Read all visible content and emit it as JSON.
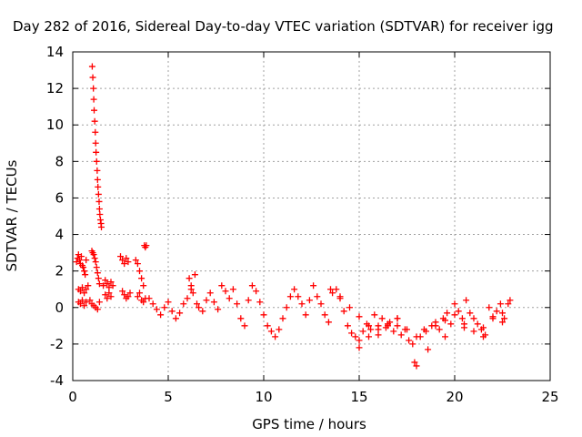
{
  "chart_data": {
    "type": "scatter",
    "title": "Day 282 of 2016, Sidereal Day-to-day VTEC variation (SDTVAR) for receiver igg",
    "xlabel": "GPS time / hours",
    "ylabel": "SDTVAR / TECUs",
    "xlim": [
      0,
      25
    ],
    "ylim": [
      -4,
      14
    ],
    "xticks": [
      "0",
      "5",
      "10",
      "15",
      "20",
      "25"
    ],
    "yticks": [
      "-4",
      "-2",
      "0",
      "2",
      "4",
      "6",
      "8",
      "10",
      "12",
      "14"
    ],
    "grid": true,
    "marker": "+",
    "color": "#ff0000",
    "series": [
      {
        "name": "SDTVAR",
        "x": [
          0.2,
          0.25,
          0.3,
          0.35,
          0.4,
          0.45,
          0.5,
          0.55,
          0.6,
          0.65,
          0.7,
          0.3,
          0.4,
          0.5,
          0.6,
          0.7,
          0.8,
          0.3,
          0.4,
          0.5,
          0.6,
          0.7,
          1.02,
          1.05,
          1.08,
          1.1,
          1.12,
          1.15,
          1.18,
          1.2,
          1.22,
          1.25,
          1.28,
          1.3,
          1.32,
          1.35,
          1.38,
          1.4,
          1.42,
          1.45,
          1.48,
          1.5,
          1.0,
          1.05,
          1.1,
          1.15,
          1.2,
          1.25,
          1.3,
          1.35,
          1.4,
          0.9,
          1.0,
          1.1,
          1.2,
          1.3,
          1.4,
          1.6,
          1.7,
          1.8,
          1.9,
          2.0,
          2.1,
          1.7,
          1.8,
          1.9,
          2.0,
          2.5,
          2.6,
          2.7,
          2.8,
          2.9,
          2.6,
          2.7,
          2.8,
          2.9,
          3.0,
          3.3,
          3.4,
          3.5,
          3.6,
          3.7,
          3.4,
          3.5,
          3.6,
          3.7,
          3.8,
          3.75,
          3.8,
          3.85,
          4.0,
          4.2,
          4.4,
          4.6,
          4.8,
          5.0,
          5.2,
          5.4,
          5.6,
          5.8,
          6.0,
          6.2,
          6.4,
          6.1,
          6.2,
          6.3,
          6.5,
          6.6,
          6.8,
          7.0,
          7.2,
          7.4,
          7.6,
          7.8,
          8.0,
          8.2,
          8.4,
          8.6,
          8.8,
          9.0,
          9.2,
          9.4,
          9.6,
          9.8,
          10.0,
          10.2,
          10.4,
          10.6,
          10.8,
          11.0,
          11.2,
          11.4,
          11.6,
          11.8,
          12.0,
          12.2,
          12.4,
          12.6,
          12.8,
          13.0,
          13.2,
          13.4,
          13.6,
          13.8,
          14.0,
          14.2,
          14.4,
          14.6,
          14.8,
          15.0,
          15.2,
          15.4,
          15.6,
          15.8,
          16.0,
          16.2,
          16.4,
          16.6,
          16.8,
          17.0,
          17.2,
          17.4,
          17.6,
          17.8,
          17.9,
          18.0,
          18.2,
          18.4,
          18.6,
          18.8,
          19.0,
          19.2,
          19.4,
          19.6,
          19.8,
          20.0,
          20.2,
          20.4,
          20.6,
          20.8,
          21.0,
          21.2,
          21.4,
          21.6,
          21.8,
          22.0,
          22.2,
          22.4,
          22.6,
          22.8,
          22.9,
          15.0,
          15.5,
          16.0,
          16.5,
          17.0,
          19.5,
          20.5,
          21.5,
          22.5,
          13.5,
          14.0,
          14.5,
          15.0,
          15.5,
          16.0,
          16.5,
          17.0,
          17.5,
          18.0,
          18.5,
          19.0,
          19.5,
          20.0,
          20.5,
          21.0,
          21.5,
          22.0,
          22.5
        ],
        "y": [
          2.5,
          2.7,
          2.9,
          2.6,
          2.4,
          2.8,
          2.3,
          2.2,
          2.0,
          1.8,
          2.6,
          1.0,
          0.9,
          1.1,
          0.8,
          1.0,
          1.2,
          0.3,
          0.2,
          0.4,
          0.1,
          0.3,
          13.2,
          12.6,
          12.0,
          11.4,
          10.8,
          10.2,
          9.6,
          9.0,
          8.5,
          8.0,
          7.5,
          7.0,
          6.6,
          6.2,
          5.8,
          5.4,
          5.1,
          4.8,
          4.6,
          4.4,
          3.1,
          3.0,
          2.9,
          2.7,
          2.5,
          2.2,
          1.9,
          1.6,
          1.3,
          0.4,
          0.2,
          0.1,
          0.0,
          -0.1,
          0.3,
          1.2,
          1.5,
          1.3,
          1.1,
          1.4,
          1.2,
          0.7,
          0.5,
          0.8,
          0.6,
          2.8,
          2.6,
          2.4,
          2.7,
          2.5,
          0.9,
          0.7,
          0.5,
          0.6,
          0.8,
          2.6,
          2.4,
          2.0,
          1.6,
          1.2,
          0.6,
          0.8,
          0.4,
          0.3,
          0.5,
          3.4,
          3.3,
          3.4,
          0.5,
          0.2,
          -0.1,
          -0.4,
          0.0,
          0.3,
          -0.2,
          -0.6,
          -0.3,
          0.2,
          0.5,
          1.0,
          1.8,
          1.6,
          1.2,
          0.8,
          0.2,
          0.0,
          -0.2,
          0.4,
          0.8,
          0.3,
          -0.1,
          1.2,
          0.9,
          0.5,
          1.0,
          0.2,
          -0.6,
          -1.0,
          0.4,
          1.2,
          0.9,
          0.3,
          -0.4,
          -1.0,
          -1.3,
          -1.6,
          -1.2,
          -0.6,
          0.0,
          0.6,
          1.0,
          0.6,
          0.2,
          -0.4,
          0.4,
          1.2,
          0.6,
          0.2,
          -0.4,
          -0.8,
          0.8,
          1.0,
          0.6,
          -0.2,
          -1.0,
          -1.4,
          -1.6,
          -1.8,
          -1.3,
          -0.9,
          -1.2,
          -0.4,
          -1.0,
          -0.6,
          -1.1,
          -0.8,
          -1.3,
          -1.0,
          -1.5,
          -1.2,
          -1.8,
          -2.0,
          -3.0,
          -3.2,
          -1.6,
          -1.2,
          -2.3,
          -1.0,
          -0.8,
          -1.2,
          -0.6,
          -0.3,
          -0.9,
          0.2,
          -0.2,
          -0.6,
          0.4,
          -0.3,
          -0.6,
          -0.9,
          -1.2,
          -1.5,
          0.0,
          -0.5,
          -0.2,
          0.2,
          -0.6,
          0.2,
          0.4,
          -2.2,
          -1.6,
          -1.2,
          -0.9,
          -0.6,
          -1.6,
          -1.1,
          -1.6,
          -0.8,
          1.0,
          0.5,
          0.0,
          -0.5,
          -1.0,
          -1.5,
          -1.0,
          -0.6,
          -1.2,
          -1.6,
          -1.3,
          -1.0,
          -0.7,
          -0.4,
          -0.9,
          -1.3,
          -1.1,
          -0.6,
          -0.3
        ]
      }
    ]
  }
}
